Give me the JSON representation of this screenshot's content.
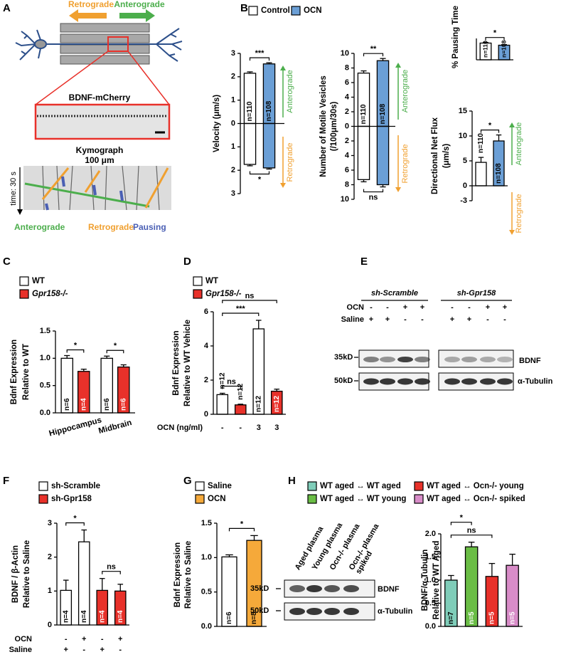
{
  "panel_labels": [
    "A",
    "B",
    "C",
    "D",
    "E",
    "F",
    "G",
    "H"
  ],
  "panel_a": {
    "retrograde": "Retrograde",
    "anterograde": "Anterograde",
    "image_label": "BDNF-mCherry",
    "kymograph": "Kymograph",
    "scale": "100 μm",
    "time": "time: 30 s",
    "key": [
      "Anterograde",
      "Retrograde",
      "Pausing"
    ]
  },
  "panel_e": {
    "groups": [
      "sh-Scramble",
      "sh-Gpr158"
    ],
    "rows": [
      {
        "label": "OCN",
        "values": [
          "-",
          "-",
          "+",
          "+",
          "-",
          "-",
          "+",
          "+"
        ]
      },
      {
        "label": "Saline",
        "values": [
          "+",
          "+",
          "-",
          "-",
          "+",
          "+",
          "-",
          "-"
        ]
      }
    ],
    "markers": [
      "35kD",
      "50kD"
    ],
    "bands": [
      "BDNF",
      "α-Tubulin"
    ]
  },
  "panel_h_blot": {
    "lanes": [
      [
        "Aged plasma"
      ],
      [
        "Young plasma"
      ],
      [
        "Ocn-/- plasma"
      ],
      [
        "Ocn-/- plasma",
        "spiked"
      ]
    ],
    "markers": [
      "35kD",
      "50kD"
    ],
    "bands": [
      "BDNF",
      "α-Tubulin"
    ]
  },
  "chart_data": [
    {
      "type": "bar",
      "legend": [
        {
          "name": "Control",
          "color": "#ffffff"
        },
        {
          "name": "OCN",
          "color": "#6b9fd6"
        }
      ],
      "ylabel": [
        "Velocity (μm/s)"
      ],
      "ylim": [
        -3,
        3
      ],
      "yticks": [
        3,
        2,
        1,
        0,
        {
          "value": -1,
          "label": "1"
        },
        {
          "value": -2,
          "label": "2"
        },
        {
          "value": -3,
          "label": "3"
        }
      ],
      "colors": [
        "#ffffff",
        "#6b9fd6"
      ],
      "n_labels": [
        "n=110",
        "n=108"
      ],
      "n_label_colors": [
        "#000000",
        "#000000"
      ],
      "series": [
        {
          "values": [
            2.15,
            2.55
          ],
          "errors": [
            0.06,
            0.05
          ],
          "bracket": "***"
        },
        {
          "values": [
            -1.75,
            -1.9
          ],
          "errors": [
            0.06,
            0.05
          ],
          "bracket": "*"
        }
      ],
      "arrows": [
        {
          "label": "Anterograde",
          "color": "#4cae4c"
        },
        {
          "label": "Retrograde",
          "color": "#f0a030"
        }
      ]
    },
    {
      "type": "bar",
      "ylabel": [
        "Number of Motile Vesicles",
        "(/100μm/30s)"
      ],
      "ylim": [
        -10,
        10
      ],
      "yticks": [
        10,
        8,
        6,
        4,
        2,
        0,
        {
          "value": -2,
          "label": "2"
        },
        {
          "value": -4,
          "label": "4"
        },
        {
          "value": -6,
          "label": "6"
        },
        {
          "value": -8,
          "label": "8"
        },
        {
          "value": -10,
          "label": "10"
        }
      ],
      "colors": [
        "#ffffff",
        "#6b9fd6"
      ],
      "n_labels": [
        "n=110",
        "n=108"
      ],
      "n_label_colors": [
        "#000000",
        "#000000"
      ],
      "series": [
        {
          "values": [
            7.3,
            9.0
          ],
          "errors": [
            0.3,
            0.3
          ],
          "bracket": "**"
        },
        {
          "values": [
            -7.3,
            -8.0
          ],
          "errors": [
            0.3,
            0.3
          ],
          "bracket": "ns"
        }
      ],
      "arrows": [
        {
          "label": "Anterograde",
          "color": "#4cae4c"
        },
        {
          "label": "Retrograde",
          "color": "#f0a030"
        }
      ]
    },
    {
      "type": "bar",
      "ylabel": [
        "% Pausing Time"
      ],
      "ylim": [
        0,
        30
      ],
      "colors": [
        "#ffffff",
        "#6b9fd6"
      ],
      "n_labels": [
        "n=110",
        "n=108"
      ],
      "n_label_colors": [
        "#000000",
        "#000000"
      ],
      "series": [
        {
          "values": [
            23.5,
            20.5
          ],
          "errors": [
            0.8,
            0.9
          ],
          "bracket": "*"
        }
      ]
    },
    {
      "type": "bar",
      "ylabel": [
        "Directional Net Flux",
        "(μm/s)"
      ],
      "ylim": [
        -3,
        15
      ],
      "yticks": [
        15,
        10,
        5,
        0,
        -3
      ],
      "colors": [
        "#ffffff",
        "#6b9fd6"
      ],
      "n_labels": [
        "n=110",
        "n=108"
      ],
      "n_label_colors": [
        "#000000",
        "#000000"
      ],
      "series": [
        {
          "values": [
            4.7,
            9.0
          ],
          "errors": [
            1.0,
            1.2
          ],
          "bracket": "*"
        }
      ],
      "arrows": [
        {
          "label": "Anterograde",
          "color": "#4cae4c"
        },
        {
          "label": "Retrograde",
          "color": "#f0a030"
        }
      ]
    },
    {
      "type": "bar",
      "legend": [
        {
          "name": "WT",
          "color": "#ffffff"
        },
        {
          "name": "Gpr158-/-",
          "color": "#e8312a"
        }
      ],
      "ylabel": [
        "Bdnf Expression",
        "Relative to WT"
      ],
      "ylim": [
        0,
        1.5
      ],
      "yticks": [
        {
          "value": 0,
          "label": "0.0"
        },
        {
          "value": 0.5,
          "label": "0.5"
        },
        {
          "value": 1,
          "label": "1.0"
        },
        {
          "value": 1.5,
          "label": "1.5"
        }
      ],
      "categories": [
        "Hippocampus",
        "Midbrain"
      ],
      "series": [
        {
          "name": "WT",
          "color": "#ffffff",
          "values": [
            1.0,
            1.0
          ],
          "errors": [
            0.05,
            0.04
          ],
          "n_labels": [
            "n=6",
            "n=6"
          ],
          "n_label_color": "#000000"
        },
        {
          "name": "Gpr158-/-",
          "color": "#e8312a",
          "values": [
            0.76,
            0.84
          ],
          "errors": [
            0.04,
            0.04
          ],
          "n_labels": [
            "n=4",
            "n=6"
          ],
          "n_label_color": "#ffffff"
        }
      ],
      "brackets": [
        "*",
        "*"
      ]
    },
    {
      "type": "bar",
      "legend": [
        {
          "name": "WT",
          "color": "#ffffff"
        },
        {
          "name": "Gpr158-/-",
          "color": "#e8312a"
        }
      ],
      "ylabel": [
        "Bdnf Expression",
        "Relative to WT Vehicle"
      ],
      "ylim": [
        0,
        6
      ],
      "yticks": [
        0,
        2,
        4,
        6
      ],
      "values": [
        1.15,
        0.55,
        5.0,
        1.35
      ],
      "errors": [
        0.08,
        0.04,
        0.5,
        0.12
      ],
      "colors": [
        "#ffffff",
        "#e8312a",
        "#ffffff",
        "#e8312a"
      ],
      "n_labels": [
        "n=12",
        "n=12",
        "n=12",
        "n=12"
      ],
      "n_label_colors": [
        "#000000",
        "#ffffff",
        "#000000",
        "#ffffff"
      ],
      "rows": [
        {
          "label": "OCN (ng/ml)",
          "values": [
            "-",
            "-",
            "3",
            "3"
          ]
        }
      ],
      "brackets": [
        {
          "label": "ns",
          "bars": [
            0,
            1
          ]
        },
        {
          "label": "***",
          "bars": [
            0,
            2
          ]
        },
        {
          "label": "ns",
          "bars": [
            0,
            3
          ]
        }
      ]
    },
    {
      "type": "bar",
      "legend": [
        {
          "name": "sh-Scramble",
          "color": "#ffffff"
        },
        {
          "name": "sh-Gpr158",
          "color": "#e8312a"
        }
      ],
      "ylabel": [
        "BDNF / β-Actin",
        "Relative to Saline"
      ],
      "ylim": [
        0,
        3
      ],
      "yticks": [
        0,
        1,
        2,
        3
      ],
      "values": [
        1.02,
        2.45,
        1.02,
        1.0
      ],
      "errors": [
        0.3,
        0.35,
        0.35,
        0.2
      ],
      "colors": [
        "#ffffff",
        "#ffffff",
        "#e8312a",
        "#e8312a"
      ],
      "n_labels": [
        "n=4",
        "n=4",
        "n=4",
        "n=4"
      ],
      "n_label_colors": [
        "#000000",
        "#000000",
        "#ffffff",
        "#ffffff"
      ],
      "rows": [
        {
          "label": "OCN",
          "values": [
            "-",
            "+",
            "-",
            "+"
          ]
        },
        {
          "label": "Saline",
          "values": [
            "+",
            "-",
            "+",
            "-"
          ]
        }
      ],
      "brackets": [
        {
          "label": "*",
          "bars": [
            0,
            1
          ]
        },
        {
          "label": "ns",
          "bars": [
            2,
            3
          ]
        }
      ]
    },
    {
      "type": "bar",
      "legend": [
        {
          "name": "Saline",
          "color": "#ffffff"
        },
        {
          "name": "OCN",
          "color": "#f5a93a"
        }
      ],
      "ylabel": [
        "Bdnf Expression",
        "Relative to Saline"
      ],
      "ylim": [
        0,
        1.5
      ],
      "yticks": [
        {
          "value": 0,
          "label": "0.0"
        },
        {
          "value": 0.5,
          "label": "0.5"
        },
        {
          "value": 1,
          "label": "1.0"
        },
        {
          "value": 1.5,
          "label": "1.5"
        }
      ],
      "values": [
        1.01,
        1.25
      ],
      "errors": [
        0.03,
        0.07
      ],
      "colors": [
        "#ffffff",
        "#f5a93a"
      ],
      "n_labels": [
        "n=6",
        "n=8"
      ],
      "n_label_colors": [
        "#000000",
        "#000000"
      ],
      "brackets": [
        {
          "label": "*",
          "bars": [
            0,
            1
          ]
        }
      ]
    },
    {
      "type": "bar",
      "legend": [
        {
          "name": "WT aged ↔ WT aged",
          "color": "#7fcdb9"
        },
        {
          "name": "WT aged ↔ WT young",
          "color": "#6abd45"
        },
        {
          "name": "WT aged ↔ Ocn-/- young",
          "color": "#e8312a"
        },
        {
          "name": "WT aged ↔ Ocn-/- spiked",
          "color": "#d88cc8"
        }
      ],
      "ylabel": [
        "BDNF/α-Tubulin",
        "Relative to WT Aged"
      ],
      "ylim": [
        0,
        2
      ],
      "yticks": [
        {
          "value": 0,
          "label": "0.0"
        },
        {
          "value": 0.5,
          "label": "0.5"
        },
        {
          "value": 1,
          "label": "1.0"
        },
        {
          "value": 1.5,
          "label": "1.5"
        },
        {
          "value": 2,
          "label": "2.0"
        }
      ],
      "values": [
        1.0,
        1.72,
        1.08,
        1.32
      ],
      "errors": [
        0.1,
        0.1,
        0.28,
        0.24
      ],
      "colors": [
        "#7fcdb9",
        "#6abd45",
        "#e8312a",
        "#d88cc8"
      ],
      "n_labels": [
        "n=7",
        "n=5",
        "n=5",
        "n=5"
      ],
      "n_label_colors": [
        "#000000",
        "#ffffff",
        "#ffffff",
        "#ffffff"
      ],
      "brackets": [
        {
          "label": "ns",
          "bars": [
            0,
            2
          ]
        },
        {
          "label": "*",
          "bars": [
            0,
            1
          ]
        }
      ]
    }
  ]
}
